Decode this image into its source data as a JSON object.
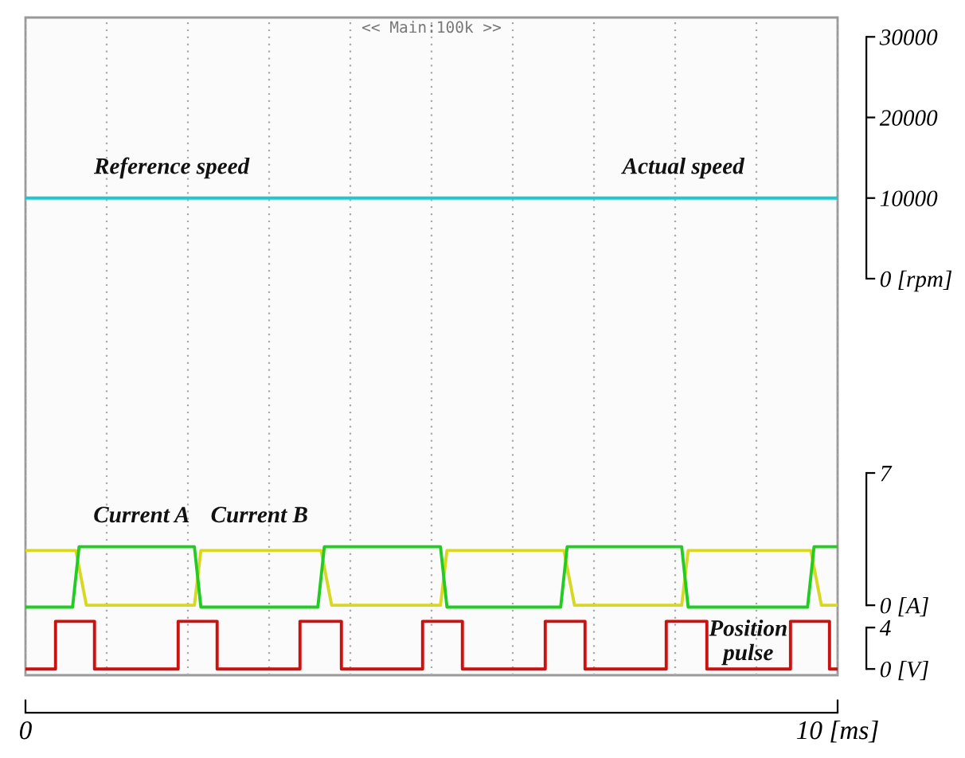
{
  "chart_data": {
    "type": "line",
    "xlim": [
      0,
      10
    ],
    "xticks": [
      {
        "value": 0,
        "label": "0"
      },
      {
        "value": 1,
        "label": null
      },
      {
        "value": 2,
        "label": null
      },
      {
        "value": 3,
        "label": null
      },
      {
        "value": 4,
        "label": null
      },
      {
        "value": 5,
        "label": null
      },
      {
        "value": 6,
        "label": null
      },
      {
        "value": 7,
        "label": null
      },
      {
        "value": 8,
        "label": null
      },
      {
        "value": 9,
        "label": null
      },
      {
        "value": 10,
        "label": "10 [ms]"
      }
    ],
    "ylim": [
      -49200,
      32400
    ],
    "yticks": [
      {
        "value": 0,
        "label": "0 [rpm]"
      },
      10000,
      20000,
      30000
    ],
    "y2lim": [
      -3.7,
      31.1
    ],
    "y2ticks": [
      {
        "value": 0,
        "label": "0 [A]"
      },
      7
    ],
    "y3lim": [
      -0.6,
      62.9
    ],
    "y3ticks": [
      {
        "value": 0,
        "label": "0 [V]"
      },
      4
    ],
    "grid": "x",
    "marker": "none",
    "line_style": "solid",
    "series": [
      {
        "axis": "y",
        "color": "#1fc8d0",
        "x": [
          0,
          10
        ],
        "values": [
          10000,
          10000
        ]
      },
      {
        "axis": "y2",
        "color": "#d8d820",
        "x": [
          0,
          0.62,
          0.75,
          2.08,
          2.16,
          3.64,
          3.77,
          5.11,
          5.19,
          6.63,
          6.76,
          8.08,
          8.16,
          9.67,
          9.8,
          10
        ],
        "values": [
          2.9,
          2.9,
          0,
          0,
          2.9,
          2.9,
          0,
          0,
          2.9,
          2.9,
          0,
          0,
          2.9,
          2.9,
          0,
          0
        ]
      },
      {
        "axis": "y2",
        "color": "#22cc22",
        "x": [
          0,
          0.58,
          0.66,
          2.08,
          2.16,
          3.6,
          3.68,
          5.11,
          5.19,
          6.59,
          6.67,
          8.08,
          8.16,
          9.63,
          9.71,
          10
        ],
        "values": [
          -0.1,
          -0.1,
          3.1,
          3.1,
          -0.1,
          -0.1,
          3.1,
          3.1,
          -0.1,
          -0.1,
          3.1,
          3.1,
          -0.1,
          -0.1,
          3.1,
          3.1
        ]
      },
      {
        "axis": "y3",
        "color": "#cc1111",
        "x": [
          0,
          0.37,
          0.37,
          0.85,
          0.85,
          1.88,
          1.88,
          2.36,
          2.36,
          3.38,
          3.38,
          3.89,
          3.89,
          4.89,
          4.89,
          5.38,
          5.38,
          6.4,
          6.4,
          6.89,
          6.89,
          7.89,
          7.89,
          8.39,
          8.39,
          9.42,
          9.42,
          9.9,
          9.9,
          10
        ],
        "values": [
          0,
          0,
          4.6,
          4.6,
          0,
          0,
          4.6,
          4.6,
          0,
          0,
          4.6,
          4.6,
          0,
          0,
          4.6,
          4.6,
          0,
          0,
          4.6,
          4.6,
          0,
          0,
          4.6,
          4.6,
          0,
          0,
          4.6,
          4.6,
          0,
          0
        ]
      }
    ],
    "annotations": [
      "<< Main:100k >>",
      "Reference speed",
      "Actual speed",
      "Current A",
      "Current B",
      "Position\npulse"
    ]
  }
}
